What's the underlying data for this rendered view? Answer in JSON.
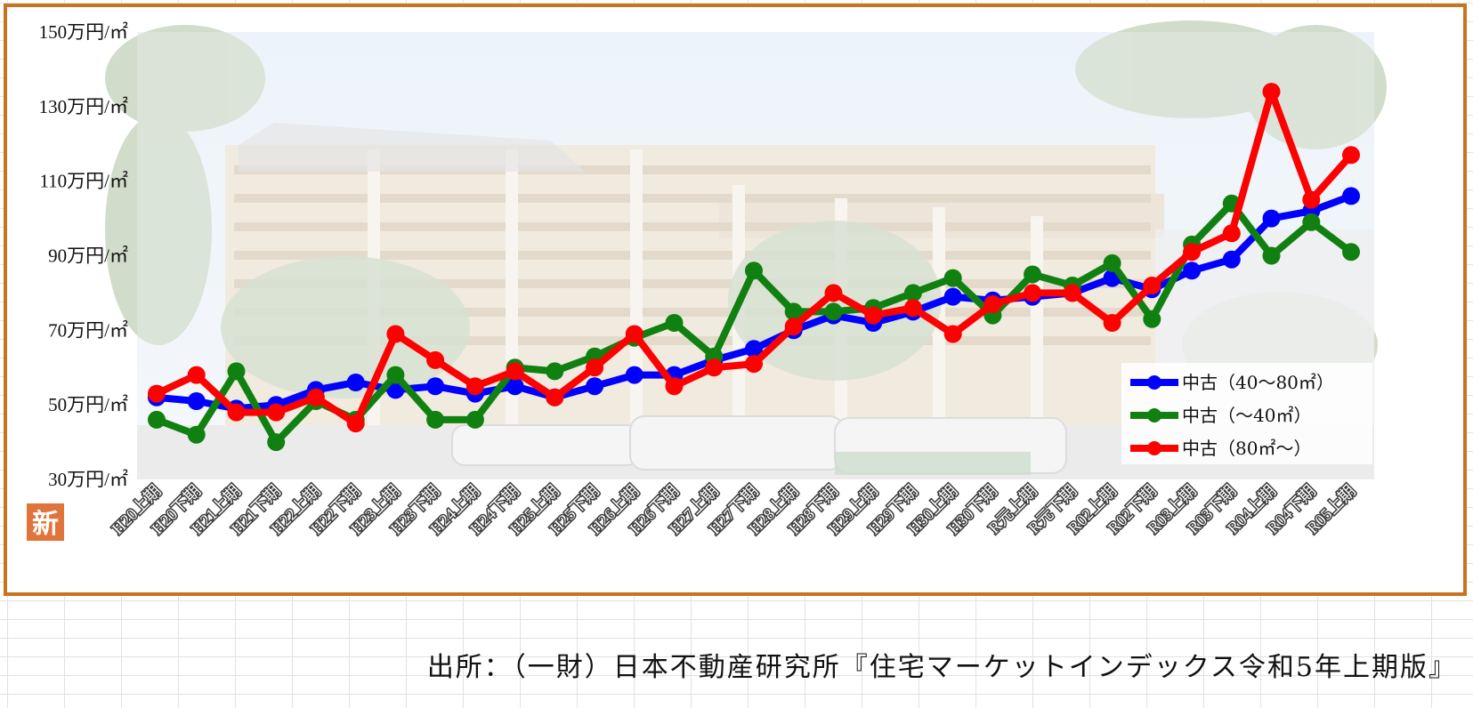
{
  "colors": {
    "frame": "#c8741e",
    "badge": "#e0743a",
    "series": [
      "#0000ff",
      "#108010",
      "#ff0000"
    ]
  },
  "badge": {
    "label": "新"
  },
  "source": "出所：（一財）日本不動産研究所『住宅マーケットインデックス令和5年上期版』",
  "chart_data": {
    "type": "line",
    "background": "photo-of-office-building",
    "grid": false,
    "legend_position": "lower-right",
    "ylim": [
      30,
      150
    ],
    "ytick_values": [
      30,
      50,
      70,
      90,
      110,
      130,
      150
    ],
    "ytick_labels": [
      "30万円/㎡",
      "50万円/㎡",
      "70万円/㎡",
      "90万円/㎡",
      "110万円/㎡",
      "130万円/㎡",
      "150万円/㎡"
    ],
    "categories": [
      "H20上期",
      "H20下期",
      "H21上期",
      "H21下期",
      "H22上期",
      "H22下期",
      "H23上期",
      "H23下期",
      "H24上期",
      "H24下期",
      "H25上期",
      "H25下期",
      "H26上期",
      "H26下期",
      "H27上期",
      "H27下期",
      "H28上期",
      "H28下期",
      "H29上期",
      "H29下期",
      "H30上期",
      "H30下期",
      "R元上期",
      "R元下期",
      "R02上期",
      "R02下期",
      "R03上期",
      "R03下期",
      "R04上期",
      "R04下期",
      "R05上期"
    ],
    "series": [
      {
        "name": "中古（40～80㎡）",
        "values": [
          52,
          51,
          49,
          50,
          54,
          56,
          54,
          55,
          53,
          55,
          52,
          55,
          58,
          58,
          62,
          65,
          70,
          74,
          72,
          75,
          79,
          78,
          79,
          80,
          84,
          81,
          86,
          89,
          100,
          102,
          106
        ]
      },
      {
        "name": "中古（～40㎡）",
        "values": [
          46,
          42,
          59,
          40,
          51,
          46,
          58,
          46,
          46,
          60,
          59,
          63,
          68,
          72,
          63,
          86,
          75,
          75,
          76,
          80,
          84,
          74,
          85,
          82,
          88,
          73,
          93,
          104,
          90,
          99,
          91
        ]
      },
      {
        "name": "中古（80㎡～）",
        "values": [
          53,
          58,
          48,
          48,
          52,
          45,
          69,
          62,
          55,
          59,
          52,
          60,
          69,
          55,
          60,
          61,
          71,
          80,
          74,
          76,
          69,
          77,
          80,
          80,
          72,
          82,
          91,
          96,
          134,
          105,
          117
        ]
      }
    ]
  }
}
